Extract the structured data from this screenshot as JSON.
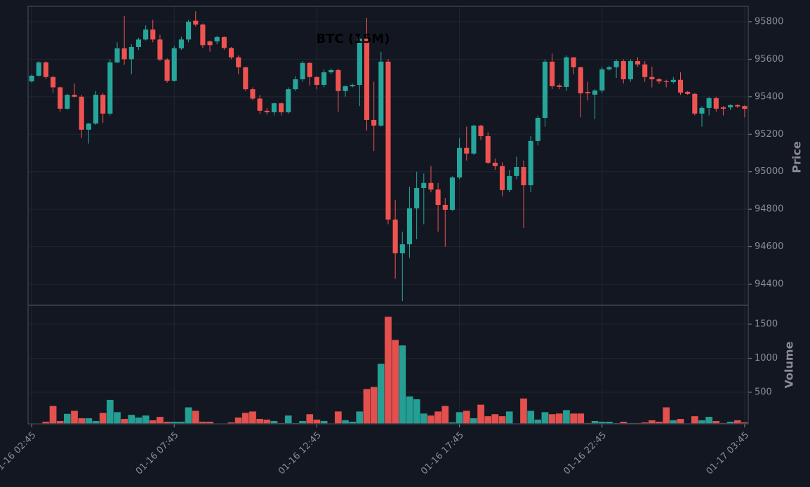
{
  "chart_data": {
    "type": "candlestick",
    "title": "BTC (15M)",
    "categories": [
      "01-16 02:45",
      null,
      null,
      null,
      null,
      null,
      null,
      null,
      null,
      null,
      null,
      null,
      null,
      null,
      null,
      null,
      null,
      null,
      null,
      null,
      "01-16 07:45",
      null,
      null,
      null,
      null,
      null,
      null,
      null,
      null,
      null,
      null,
      null,
      null,
      null,
      null,
      null,
      null,
      null,
      null,
      null,
      "01-16 12:45",
      null,
      null,
      null,
      null,
      null,
      null,
      null,
      null,
      null,
      null,
      null,
      null,
      null,
      null,
      null,
      null,
      null,
      null,
      null,
      "01-16 17:45",
      null,
      null,
      null,
      null,
      null,
      null,
      null,
      null,
      null,
      null,
      null,
      null,
      null,
      null,
      null,
      null,
      null,
      null,
      null,
      "01-16 22:45",
      null,
      null,
      null,
      null,
      null,
      null,
      null,
      null,
      null,
      null,
      null,
      null,
      null,
      null,
      null,
      null,
      null,
      null,
      null,
      "01-17 03:45"
    ],
    "open": [
      95482,
      95512,
      95583,
      95505,
      95450,
      95336,
      95410,
      95400,
      95224,
      95257,
      95410,
      95310,
      95583,
      95658,
      95600,
      95665,
      95705,
      95758,
      95705,
      95598,
      95485,
      95658,
      95705,
      95805,
      95785,
      95695,
      95695,
      95718,
      95660,
      95610,
      95557,
      95440,
      95390,
      95325,
      95317,
      95365,
      95317,
      95440,
      95493,
      95580,
      95505,
      95463,
      95530,
      95542,
      95430,
      95456,
      95463,
      95710,
      95276,
      95246,
      95587,
      94745,
      94565,
      94613,
      94805,
      94913,
      94940,
      94905,
      94823,
      94797,
      94970,
      95127,
      95097,
      95246,
      95190,
      95048,
      95030,
      94902,
      94977,
      95025,
      94928,
      95164,
      95287,
      95587,
      95460,
      95452,
      95610,
      95557,
      95425,
      95411,
      95433,
      95546,
      95557,
      95590,
      95493,
      95590,
      95572,
      95505,
      95493,
      95482,
      95478,
      95490,
      95426,
      95415,
      95310,
      95340,
      95392,
      95343,
      95343,
      95355,
      95350
    ],
    "high": [
      95520,
      95590,
      95590,
      95510,
      95455,
      95415,
      95470,
      95410,
      95260,
      95430,
      95420,
      95600,
      95690,
      95830,
      95680,
      95715,
      95780,
      95810,
      95730,
      95605,
      95670,
      95720,
      95810,
      95855,
      95790,
      95700,
      95725,
      95722,
      95665,
      95620,
      95560,
      95450,
      95410,
      95340,
      95370,
      95370,
      95450,
      95510,
      95590,
      95585,
      95510,
      95545,
      95550,
      95550,
      95460,
      95470,
      95720,
      95820,
      95480,
      95640,
      95600,
      94850,
      94680,
      94920,
      95000,
      94990,
      95030,
      94940,
      94860,
      94975,
      95180,
      95240,
      95250,
      95250,
      95210,
      95070,
      95050,
      95010,
      95080,
      95060,
      95190,
      95300,
      95600,
      95630,
      95470,
      95620,
      95610,
      95560,
      95480,
      95440,
      95560,
      95565,
      95600,
      95600,
      95600,
      95610,
      95590,
      95560,
      95500,
      95490,
      95505,
      95530,
      95430,
      95420,
      95350,
      95400,
      95400,
      95350,
      95360,
      95360,
      95355
    ],
    "low": [
      95475,
      95505,
      95495,
      95420,
      95320,
      95330,
      95395,
      95180,
      95150,
      95250,
      95260,
      95300,
      95580,
      95570,
      95520,
      95650,
      95700,
      95690,
      95590,
      95475,
      95480,
      95650,
      95690,
      95775,
      95660,
      95640,
      95680,
      95650,
      95600,
      95520,
      95430,
      95380,
      95310,
      95305,
      95300,
      95300,
      95310,
      95430,
      95480,
      95460,
      95440,
      95450,
      95520,
      95320,
      95400,
      95450,
      95350,
      95220,
      95110,
      95240,
      94720,
      94430,
      94310,
      94540,
      94640,
      94720,
      94890,
      94680,
      94600,
      94790,
      94960,
      95060,
      95090,
      95170,
      95040,
      95010,
      94870,
      94890,
      94960,
      94700,
      94890,
      95140,
      95240,
      95440,
      95440,
      95430,
      95520,
      95290,
      95380,
      95280,
      95420,
      95540,
      95500,
      95470,
      95480,
      95560,
      95480,
      95450,
      95470,
      95450,
      95470,
      95410,
      95410,
      95300,
      95240,
      95300,
      95320,
      95300,
      95330,
      95340,
      95290
    ],
    "close": [
      95512,
      95583,
      95505,
      95450,
      95336,
      95410,
      95400,
      95224,
      95257,
      95410,
      95310,
      95583,
      95658,
      95600,
      95665,
      95705,
      95758,
      95705,
      95598,
      95485,
      95658,
      95705,
      95800,
      95785,
      95675,
      95675,
      95718,
      95660,
      95610,
      95557,
      95440,
      95390,
      95325,
      95317,
      95365,
      95317,
      95440,
      95493,
      95580,
      95505,
      95463,
      95530,
      95542,
      95430,
      95456,
      95463,
      95710,
      95276,
      95246,
      95587,
      94745,
      94565,
      94613,
      94805,
      94913,
      94940,
      94905,
      94823,
      94797,
      94970,
      95127,
      95097,
      95246,
      95190,
      95048,
      95030,
      94902,
      94977,
      95025,
      94928,
      95164,
      95287,
      95587,
      95456,
      95452,
      95610,
      95557,
      95418,
      95418,
      95433,
      95546,
      95557,
      95590,
      95493,
      95590,
      95572,
      95505,
      95493,
      95482,
      95478,
      95490,
      95422,
      95415,
      95310,
      95340,
      95392,
      95336,
      95336,
      95355,
      95348,
      95335
    ],
    "volume": [
      40,
      40,
      70,
      300,
      80,
      185,
      230,
      120,
      120,
      80,
      200,
      390,
      210,
      110,
      170,
      130,
      160,
      90,
      140,
      70,
      70,
      70,
      280,
      230,
      70,
      70,
      40,
      40,
      60,
      130,
      200,
      220,
      110,
      100,
      80,
      50,
      160,
      50,
      80,
      180,
      100,
      80,
      40,
      220,
      90,
      70,
      220,
      550,
      580,
      920,
      1610,
      1270,
      1190,
      440,
      400,
      190,
      160,
      220,
      300,
      60,
      210,
      230,
      120,
      320,
      150,
      180,
      150,
      220,
      40,
      410,
      230,
      100,
      210,
      180,
      190,
      240,
      190,
      190,
      50,
      80,
      70,
      70,
      50,
      70,
      50,
      50,
      60,
      90,
      70,
      280,
      90,
      110,
      40,
      150,
      90,
      140,
      80,
      50,
      70,
      90,
      60
    ],
    "up_color": "#26a69a",
    "down_color": "#ef5350",
    "ylabel": "Price",
    "ylim": [
      94288,
      95882
    ],
    "yticks": [
      94400,
      94600,
      94800,
      95000,
      95200,
      95400,
      95600,
      95800
    ],
    "volume_label": "Volume",
    "volume_ylim": [
      36,
      1778
    ],
    "volume_yticks": [
      500,
      1000,
      1500
    ],
    "grid": true
  }
}
